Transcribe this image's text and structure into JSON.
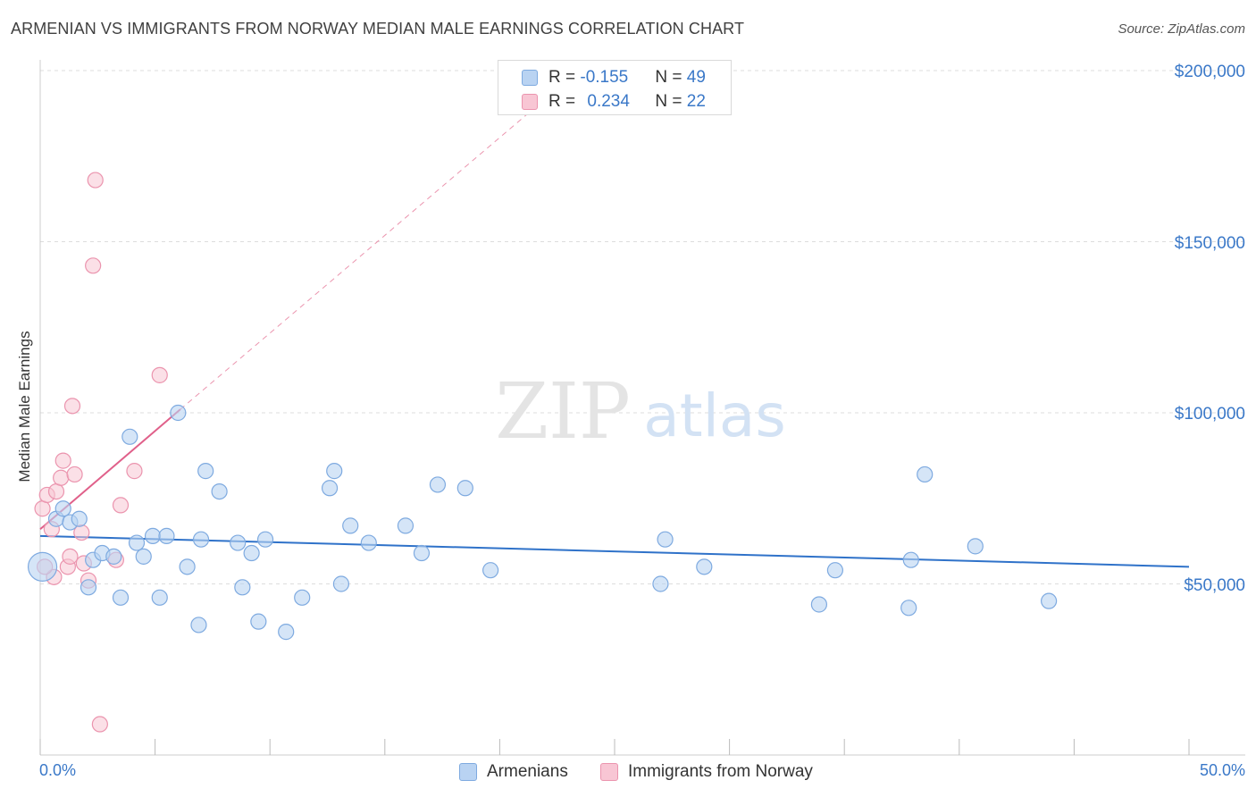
{
  "title": "ARMENIAN VS IMMIGRANTS FROM NORWAY MEDIAN MALE EARNINGS CORRELATION CHART",
  "source": "Source: ZipAtlas.com",
  "watermark": {
    "zip": "ZIP",
    "atlas": "atlas"
  },
  "legend": {
    "armenians": {
      "r_label": "R = ",
      "r_value": "-0.155",
      "n_label": "N = ",
      "n_value": "49"
    },
    "norway": {
      "r_label": "R = ",
      "r_value": "0.234",
      "n_label": "N = ",
      "n_value": "22"
    }
  },
  "bottom_legend": {
    "armenians": "Armenians",
    "norway": "Immigrants from Norway"
  },
  "colors": {
    "armenians_fill": "#b9d3f2",
    "armenians_stroke": "#7eaae0",
    "armenians_line": "#2f72c9",
    "norway_fill": "#f8c6d4",
    "norway_stroke": "#eb94ae",
    "norway_line": "#e0608a",
    "axis_text": "#3a78c8",
    "grid": "#dddddd"
  },
  "chart_data": {
    "type": "scatter",
    "title": "ARMENIAN VS IMMIGRANTS FROM NORWAY MEDIAN MALE EARNINGS CORRELATION CHART",
    "xlabel": "",
    "ylabel": "Median Male Earnings",
    "xlim": [
      0,
      50
    ],
    "ylim": [
      0,
      200000
    ],
    "x_tick_labels": [
      "0.0%",
      "50.0%"
    ],
    "y_ticks": [
      50000,
      100000,
      150000,
      200000
    ],
    "y_tick_labels": [
      "$50,000",
      "$100,000",
      "$150,000",
      "$200,000"
    ],
    "grid": true,
    "series": [
      {
        "name": "Armenians",
        "R": -0.155,
        "N": 49,
        "points": [
          [
            0.1,
            55000
          ],
          [
            0.7,
            69000
          ],
          [
            1.0,
            72000
          ],
          [
            1.3,
            68000
          ],
          [
            1.7,
            69000
          ],
          [
            2.1,
            49000
          ],
          [
            2.3,
            57000
          ],
          [
            2.7,
            59000
          ],
          [
            3.2,
            58000
          ],
          [
            3.5,
            46000
          ],
          [
            3.9,
            93000
          ],
          [
            4.2,
            62000
          ],
          [
            4.5,
            58000
          ],
          [
            4.9,
            64000
          ],
          [
            5.2,
            46000
          ],
          [
            5.5,
            64000
          ],
          [
            6.0,
            100000
          ],
          [
            6.4,
            55000
          ],
          [
            6.9,
            38000
          ],
          [
            7.0,
            63000
          ],
          [
            7.2,
            83000
          ],
          [
            7.8,
            77000
          ],
          [
            8.6,
            62000
          ],
          [
            8.8,
            49000
          ],
          [
            9.2,
            59000
          ],
          [
            9.5,
            39000
          ],
          [
            9.8,
            63000
          ],
          [
            10.7,
            36000
          ],
          [
            11.4,
            46000
          ],
          [
            12.6,
            78000
          ],
          [
            12.8,
            83000
          ],
          [
            13.1,
            50000
          ],
          [
            13.5,
            67000
          ],
          [
            14.3,
            62000
          ],
          [
            15.9,
            67000
          ],
          [
            16.6,
            59000
          ],
          [
            17.3,
            79000
          ],
          [
            18.5,
            78000
          ],
          [
            19.6,
            54000
          ],
          [
            27.0,
            50000
          ],
          [
            27.2,
            63000
          ],
          [
            28.9,
            55000
          ],
          [
            33.9,
            44000
          ],
          [
            34.6,
            54000
          ],
          [
            37.9,
            57000
          ],
          [
            37.8,
            43000
          ],
          [
            38.5,
            82000
          ],
          [
            40.7,
            61000
          ],
          [
            43.9,
            45000
          ]
        ],
        "trend": {
          "x": [
            0,
            50
          ],
          "y": [
            64000,
            55000
          ]
        }
      },
      {
        "name": "Immigrants from Norway",
        "R": 0.234,
        "N": 22,
        "points": [
          [
            0.1,
            72000
          ],
          [
            0.3,
            76000
          ],
          [
            0.5,
            66000
          ],
          [
            0.6,
            52000
          ],
          [
            0.7,
            77000
          ],
          [
            0.9,
            81000
          ],
          [
            1.0,
            86000
          ],
          [
            1.2,
            55000
          ],
          [
            1.3,
            58000
          ],
          [
            1.4,
            102000
          ],
          [
            1.5,
            82000
          ],
          [
            1.8,
            65000
          ],
          [
            1.9,
            56000
          ],
          [
            2.1,
            51000
          ],
          [
            2.3,
            143000
          ],
          [
            2.4,
            168000
          ],
          [
            2.6,
            9000
          ],
          [
            3.3,
            57000
          ],
          [
            3.5,
            73000
          ],
          [
            4.1,
            83000
          ],
          [
            5.2,
            111000
          ],
          [
            0.2,
            55000
          ]
        ],
        "trend": {
          "x": [
            0,
            6.1
          ],
          "y": [
            66000,
            101000
          ]
        },
        "trend_extension": {
          "x": [
            6.1,
            21.5
          ],
          "y": [
            101000,
            189000
          ]
        }
      }
    ]
  }
}
